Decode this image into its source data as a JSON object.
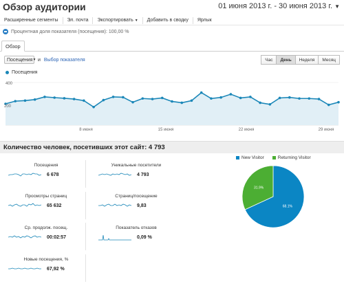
{
  "header": {
    "title": "Обзор аудитории",
    "date_range": "01 июня 2013 г. - 30 июня 2013 г."
  },
  "toolbar": {
    "advanced_segments": "Расширенные сегменты",
    "email": "Эл. почта",
    "export": "Экспортировать",
    "add_to_dashboard": "Добавить в сводку",
    "shortcut": "Ярлык"
  },
  "segment": {
    "label": "Процентная доля показателя (посещения): 100,00 %"
  },
  "tabs": [
    {
      "label": "Обзор",
      "active": true
    }
  ],
  "controls": {
    "metric": "Посещения",
    "versus": "и",
    "select_metric": "Выбор показателя"
  },
  "periods": [
    {
      "label": "Час",
      "active": false
    },
    {
      "label": "День",
      "active": true
    },
    {
      "label": "Неделя",
      "active": false
    },
    {
      "label": "Месяц",
      "active": false
    }
  ],
  "main_chart": {
    "legend": "Посещения",
    "y_ticks": [
      "400",
      "200"
    ],
    "x_ticks": [
      "8 июня",
      "15 июня",
      "22 июня",
      "29 июня"
    ],
    "line_color": "#1b87b8",
    "fill_color": "#e1eff6"
  },
  "chart_data": {
    "type": "line",
    "title": "",
    "ylabel": "",
    "ylim": [
      0,
      400
    ],
    "series": [
      {
        "name": "Посещения",
        "values": [
          200,
          225,
          230,
          240,
          265,
          258,
          252,
          245,
          230,
          170,
          235,
          265,
          262,
          215,
          250,
          245,
          255,
          222,
          210,
          230,
          305,
          250,
          260,
          290,
          255,
          265,
          210,
          195,
          255,
          260,
          250,
          250,
          245,
          190,
          215
        ]
      }
    ]
  },
  "summary": {
    "title": "Количество человек, посетивших этот сайт: 4 793",
    "metrics": [
      {
        "label": "Посещения",
        "value": "6 678"
      },
      {
        "label": "Уникальные посетители",
        "value": "4 793"
      },
      {
        "label": "Просмотры страниц",
        "value": "65 632"
      },
      {
        "label": "Страниц/посещение",
        "value": "9,83"
      },
      {
        "label": "Ср. продолж. посещ.",
        "value": "00:02:57"
      },
      {
        "label": "Показатель отказов",
        "value": "0,09 %"
      },
      {
        "label": "Новые посещения, %",
        "value": "67,92 %"
      }
    ]
  },
  "pie": {
    "legend": [
      {
        "label": "New Visitor",
        "color": "#0b86c4"
      },
      {
        "label": "Returning Visitor",
        "color": "#4cae33"
      }
    ],
    "slices": [
      {
        "label": "68.1%",
        "value": 68.1,
        "color": "#0b86c4"
      },
      {
        "label": "31.9%",
        "value": 31.9,
        "color": "#4cae33"
      }
    ]
  }
}
